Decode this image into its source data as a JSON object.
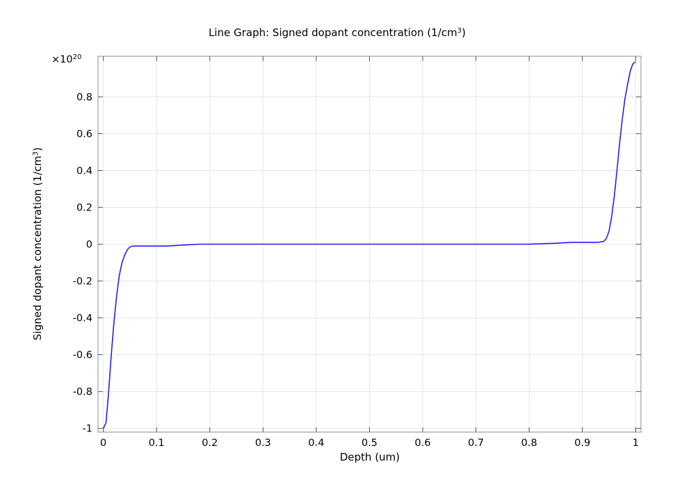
{
  "chart_data": {
    "type": "line",
    "title": "Line Graph: Signed dopant concentration (1/cm",
    "title_sup": "3",
    "title_end": ")",
    "xlabel": "Depth (um)",
    "ylabel": "Signed dopant concentration (1/cm",
    "ylabel_sup": "3",
    "ylabel_end": ")",
    "y_multiplier_base": "×10",
    "y_multiplier_exp": "20",
    "xlim": [
      -0.01,
      1.01
    ],
    "ylim": [
      -1.02,
      1.02
    ],
    "x_ticks": [
      0,
      0.1,
      0.2,
      0.3,
      0.4,
      0.5,
      0.6,
      0.7,
      0.8,
      0.9,
      1
    ],
    "x_tick_labels": [
      "0",
      "0.1",
      "0.2",
      "0.3",
      "0.4",
      "0.5",
      "0.6",
      "0.7",
      "0.8",
      "0.9",
      "1"
    ],
    "y_ticks": [
      -1,
      -0.8,
      -0.6,
      -0.4,
      -0.2,
      0,
      0.2,
      0.4,
      0.6,
      0.8
    ],
    "y_tick_labels": [
      "-1",
      "-0.8",
      "-0.6",
      "-0.4",
      "-0.2",
      "0",
      "0.2",
      "0.4",
      "0.6",
      "0.8"
    ],
    "grid": true,
    "series": [
      {
        "color": "#2020ee",
        "x": [
          0,
          0.005,
          0.01,
          0.015,
          0.02,
          0.025,
          0.03,
          0.035,
          0.04,
          0.045,
          0.05,
          0.055,
          0.06,
          0.07,
          0.08,
          0.1,
          0.12,
          0.15,
          0.18,
          0.2,
          0.3,
          0.4,
          0.5,
          0.6,
          0.7,
          0.8,
          0.85,
          0.88,
          0.9,
          0.92,
          0.93,
          0.94,
          0.945,
          0.95,
          0.955,
          0.96,
          0.965,
          0.97,
          0.975,
          0.98,
          0.985,
          0.99,
          0.995,
          1
        ],
        "y": [
          -1,
          -0.97,
          -0.8,
          -0.6,
          -0.42,
          -0.28,
          -0.17,
          -0.1,
          -0.06,
          -0.03,
          -0.015,
          -0.01,
          -0.01,
          -0.01,
          -0.01,
          -0.01,
          -0.01,
          -0.005,
          0,
          0,
          0,
          0,
          0,
          0,
          0,
          0,
          0.005,
          0.01,
          0.01,
          0.01,
          0.01,
          0.015,
          0.03,
          0.07,
          0.15,
          0.26,
          0.4,
          0.55,
          0.68,
          0.79,
          0.87,
          0.94,
          0.98,
          0.99
        ]
      }
    ]
  }
}
